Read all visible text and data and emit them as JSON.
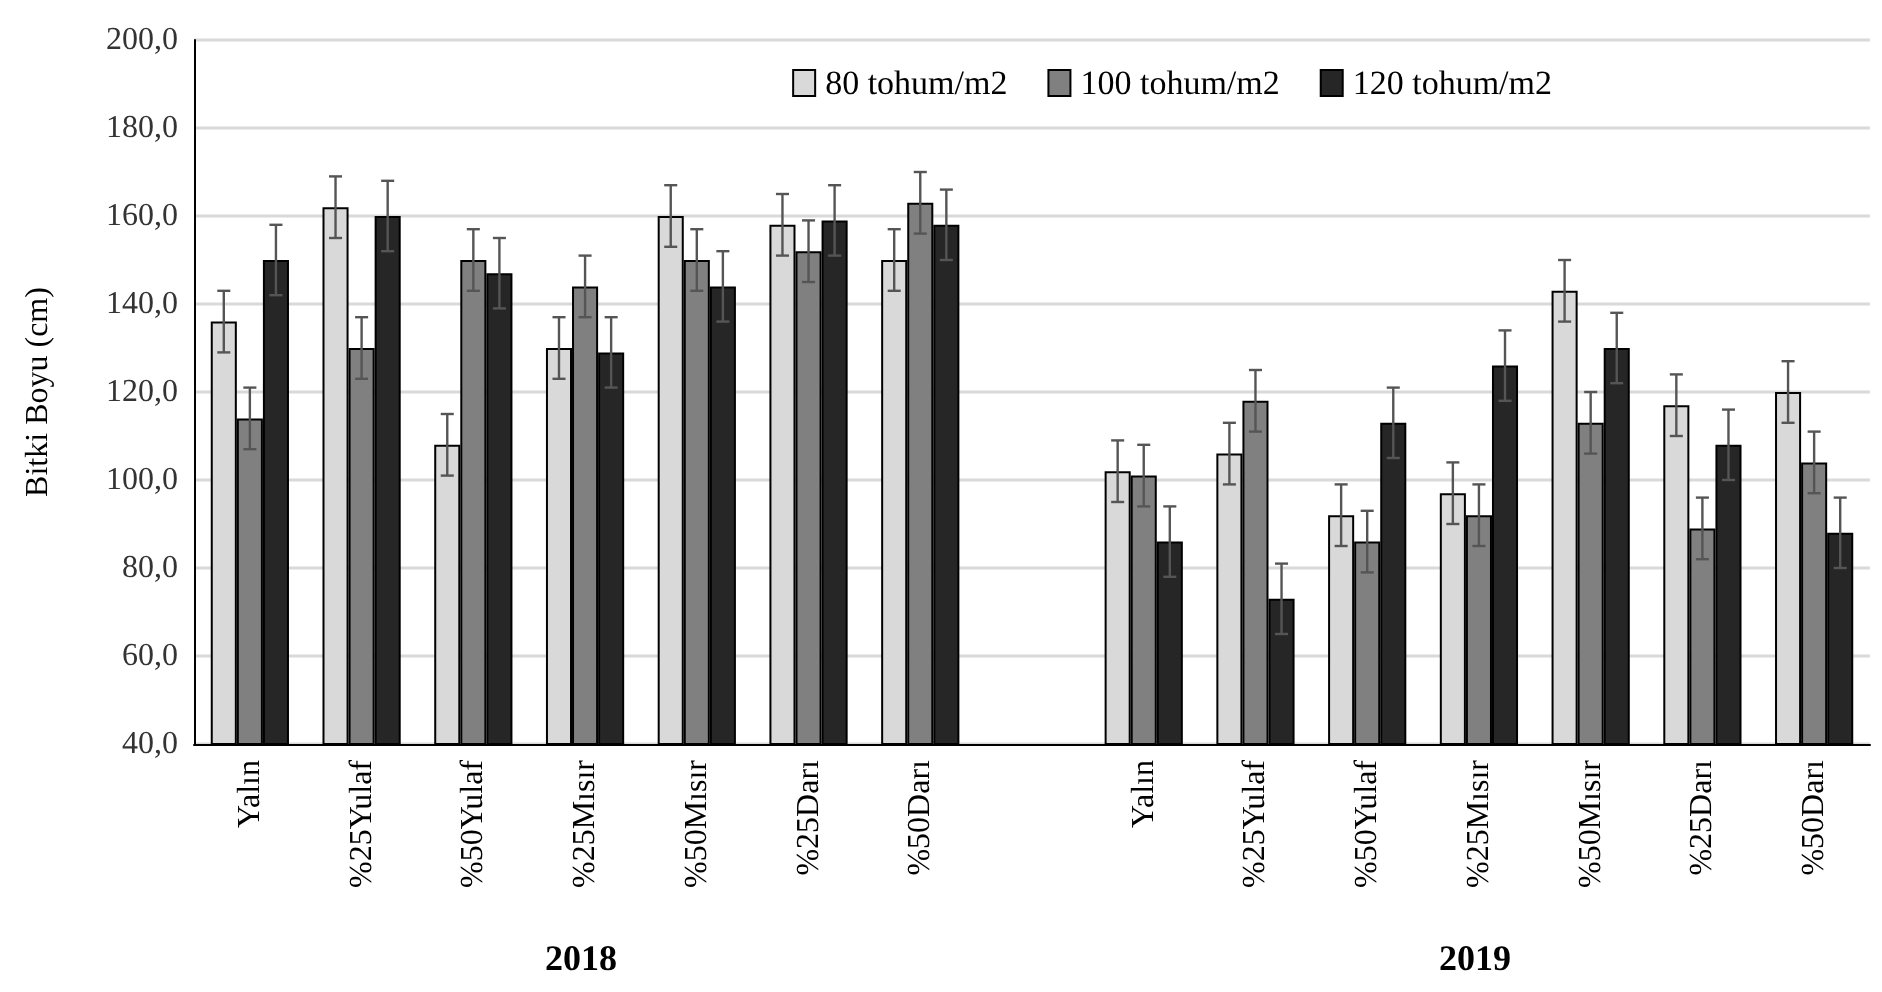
{
  "chart_data": {
    "type": "bar",
    "ylabel": "Bitki Boyu (cm)",
    "categories": [
      "Yalın",
      "%25Yulaf",
      "%50Yulaf",
      "%25Mısır",
      "%50Mısır",
      "%25Darı",
      "%50Darı",
      null,
      "Yalın",
      "%25Yulaf",
      "%50Yulaf",
      "%25Mısır",
      "%50Mısır",
      "%25Darı",
      "%50Darı"
    ],
    "series": [
      {
        "name": "80 tohum/m2",
        "color": "#d9d9d9",
        "values": [
          136,
          162,
          108,
          130,
          160,
          158,
          150,
          null,
          102,
          106,
          92,
          97,
          143,
          117,
          120
        ],
        "errors": [
          7,
          7,
          7,
          7,
          7,
          7,
          7,
          null,
          7,
          7,
          7,
          7,
          7,
          7,
          7
        ]
      },
      {
        "name": "100 tohum/m2",
        "color": "#808080",
        "values": [
          114,
          130,
          150,
          144,
          150,
          152,
          163,
          null,
          101,
          118,
          86,
          92,
          113,
          89,
          104
        ],
        "errors": [
          7,
          7,
          7,
          7,
          7,
          7,
          7,
          null,
          7,
          7,
          7,
          7,
          7,
          7,
          7
        ]
      },
      {
        "name": "120 tohum/m2",
        "color": "#262626",
        "values": [
          150,
          160,
          147,
          129,
          144,
          159,
          158,
          null,
          86,
          73,
          113,
          126,
          130,
          108,
          88
        ],
        "errors": [
          8,
          8,
          8,
          8,
          8,
          8,
          8,
          null,
          8,
          8,
          8,
          8,
          8,
          8,
          8
        ]
      }
    ],
    "ylim": [
      40,
      200
    ],
    "yticks": [
      {
        "value": 40,
        "label": "40,0"
      },
      {
        "value": 60,
        "label": "60,0"
      },
      {
        "value": 80,
        "label": "80,0"
      },
      {
        "value": 100,
        "label": "100,0"
      },
      {
        "value": 120,
        "label": "120,0"
      },
      {
        "value": 140,
        "label": "140,0"
      },
      {
        "value": 160,
        "label": "160,0"
      },
      {
        "value": 180,
        "label": "180,0"
      },
      {
        "value": 200,
        "label": "200,0"
      }
    ],
    "grid": "y",
    "legend": "top right",
    "annotations": [
      "2018",
      "2019"
    ]
  }
}
